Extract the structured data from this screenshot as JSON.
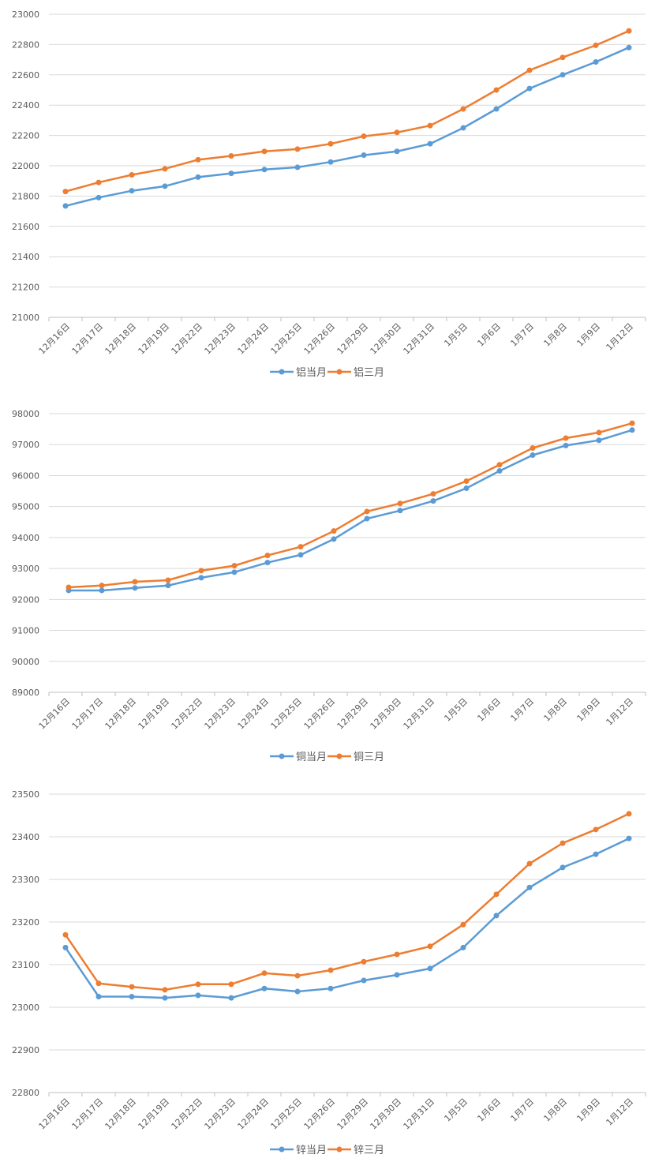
{
  "colors": {
    "series1": "#5b9bd5",
    "series2": "#ed7d31",
    "grid": "#d9d9d9",
    "text": "#595959"
  },
  "chart_data": [
    {
      "type": "line",
      "categories": [
        "12月16日",
        "12月17日",
        "12月18日",
        "12月19日",
        "12月22日",
        "12月23日",
        "12月24日",
        "12月25日",
        "12月26日",
        "12月29日",
        "12月30日",
        "12月31日",
        "1月5日",
        "1月6日",
        "1月7日",
        "1月8日",
        "1月9日",
        "1月12日"
      ],
      "ylim": [
        21000,
        23000
      ],
      "yticks": [
        21000,
        21200,
        21400,
        21600,
        21800,
        22000,
        22200,
        22400,
        22600,
        22800,
        23000
      ],
      "grid": true,
      "legend": "bottom",
      "series": [
        {
          "name": "铝当月",
          "values": [
            21735,
            21790,
            21835,
            21865,
            21925,
            21950,
            21975,
            21990,
            22025,
            22070,
            22095,
            22145,
            22250,
            22375,
            22510,
            22600,
            22685,
            22780
          ]
        },
        {
          "name": "铝三月",
          "values": [
            21830,
            21890,
            21940,
            21980,
            22040,
            22065,
            22095,
            22110,
            22145,
            22195,
            22220,
            22265,
            22375,
            22500,
            22630,
            22715,
            22795,
            22890
          ]
        }
      ]
    },
    {
      "type": "line",
      "categories": [
        "12月16日",
        "12月17日",
        "12月18日",
        "12月19日",
        "12月22日",
        "12月23日",
        "12月24日",
        "12月25日",
        "12月26日",
        "12月29日",
        "12月30日",
        "12月31日",
        "1月5日",
        "1月6日",
        "1月7日",
        "1月8日",
        "1月9日",
        "1月12日"
      ],
      "ylim": [
        89000,
        98000
      ],
      "yticks": [
        89000,
        90000,
        91000,
        92000,
        93000,
        94000,
        95000,
        96000,
        97000,
        98000
      ],
      "grid": true,
      "legend": "bottom",
      "series": [
        {
          "name": "铜当月",
          "values": [
            92290,
            92290,
            92370,
            92450,
            92700,
            92880,
            93190,
            93440,
            93950,
            94610,
            94870,
            95180,
            95590,
            96150,
            96660,
            96970,
            97140,
            97470
          ]
        },
        {
          "name": "铜三月",
          "values": [
            92390,
            92450,
            92570,
            92620,
            92930,
            93090,
            93420,
            93700,
            94210,
            94840,
            95100,
            95410,
            95820,
            96350,
            96890,
            97210,
            97390,
            97690
          ]
        }
      ]
    },
    {
      "type": "line",
      "categories": [
        "12月16日",
        "12月17日",
        "12月18日",
        "12月19日",
        "12月22日",
        "12月23日",
        "12月24日",
        "12月25日",
        "12月26日",
        "12月29日",
        "12月30日",
        "12月31日",
        "1月5日",
        "1月6日",
        "1月7日",
        "1月8日",
        "1月9日",
        "1月12日"
      ],
      "ylim": [
        22800,
        23500
      ],
      "yticks": [
        22800,
        22900,
        23000,
        23100,
        23200,
        23300,
        23400,
        23500
      ],
      "grid": true,
      "legend": "bottom",
      "series": [
        {
          "name": "锌当月",
          "values": [
            23140,
            23025,
            23025,
            23022,
            23028,
            23022,
            23044,
            23037,
            23044,
            23063,
            23076,
            23091,
            23140,
            23215,
            23281,
            23328,
            23359,
            23396
          ]
        },
        {
          "name": "锌三月",
          "values": [
            23170,
            23056,
            23048,
            23041,
            23054,
            23054,
            23080,
            23074,
            23087,
            23107,
            23124,
            23143,
            23194,
            23265,
            23337,
            23385,
            23417,
            23454
          ]
        }
      ]
    }
  ]
}
